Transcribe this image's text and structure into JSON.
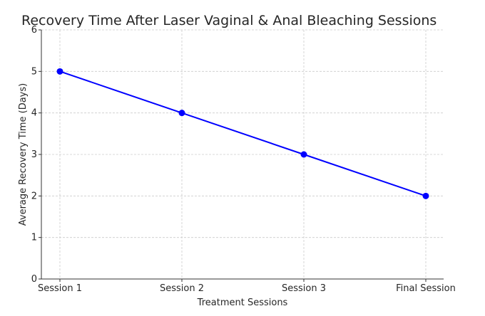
{
  "chart_data": {
    "type": "line",
    "title": "Recovery Time After Laser Vaginal & Anal Bleaching Sessions",
    "xlabel": "Treatment Sessions",
    "ylabel": "Average Recovery Time (Days)",
    "categories": [
      "Session 1",
      "Session 2",
      "Session 3",
      "Final Session"
    ],
    "series": [
      {
        "name": "Average Recovery Time",
        "values": [
          5,
          4,
          3,
          2
        ],
        "color": "#0000ff",
        "marker": "circle"
      }
    ],
    "ylim": [
      0,
      6
    ],
    "yticks": [
      0,
      1,
      2,
      3,
      4,
      5,
      6
    ],
    "grid": true,
    "legend": null
  }
}
